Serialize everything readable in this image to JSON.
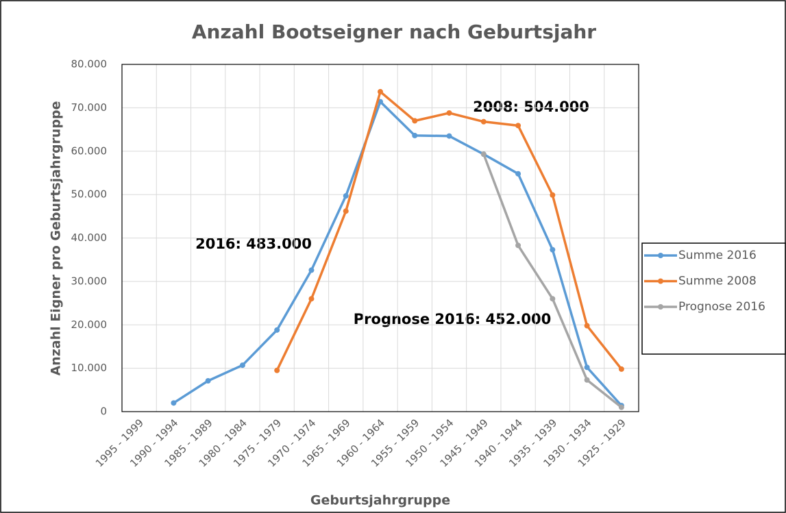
{
  "chart_data": {
    "type": "line",
    "title": "Anzahl Bootseigner nach Geburtsjahr",
    "xlabel": "Geburtsjahrgruppe",
    "ylabel": "Anzahl Eigner pro Geburtsjahrgruppe",
    "categories": [
      "1995 - 1999",
      "1990 - 1994",
      "1985 - 1989",
      "1980 - 1984",
      "1975 - 1979",
      "1970 - 1974",
      "1965 - 1969",
      "1960 - 1964",
      "1955 - 1959",
      "1950 - 1954",
      "1945 - 1949",
      "1940 - 1944",
      "1935 - 1939",
      "1930 - 1934",
      "1925 - 1929"
    ],
    "series": [
      {
        "name": "Summe 2016",
        "color": "#5b9bd5",
        "values": [
          null,
          2000,
          7100,
          10700,
          18800,
          32600,
          49700,
          71400,
          63600,
          63500,
          59300,
          54800,
          37300,
          10200,
          1400
        ]
      },
      {
        "name": "Summe 2008",
        "color": "#ed7d31",
        "values": [
          null,
          null,
          null,
          null,
          9500,
          26000,
          46200,
          73700,
          67000,
          68800,
          66800,
          65900,
          49900,
          19800,
          9800
        ]
      },
      {
        "name": "Prognose 2016",
        "color": "#a5a5a5",
        "values": [
          null,
          null,
          null,
          null,
          null,
          null,
          null,
          null,
          null,
          null,
          59300,
          38300,
          26000,
          7300,
          1000
        ]
      }
    ],
    "ylim": [
      0,
      80000
    ],
    "yticks": [
      0,
      {
        "value": 10000,
        "label": "10.000"
      },
      {
        "value": 20000,
        "label": "20.000"
      },
      {
        "value": 30000,
        "label": "30.000"
      },
      {
        "value": 40000,
        "label": "40.000"
      },
      {
        "value": 50000,
        "label": "50.000"
      },
      {
        "value": 60000,
        "label": "60.000"
      },
      {
        "value": 70000,
        "label": "70.000"
      },
      {
        "value": 80000,
        "label": "80.000"
      }
    ],
    "grid": true,
    "legend": "right",
    "annotations": [
      "2016: 483.000",
      "2008: 504.000",
      "Prognose 2016: 452.000"
    ]
  }
}
